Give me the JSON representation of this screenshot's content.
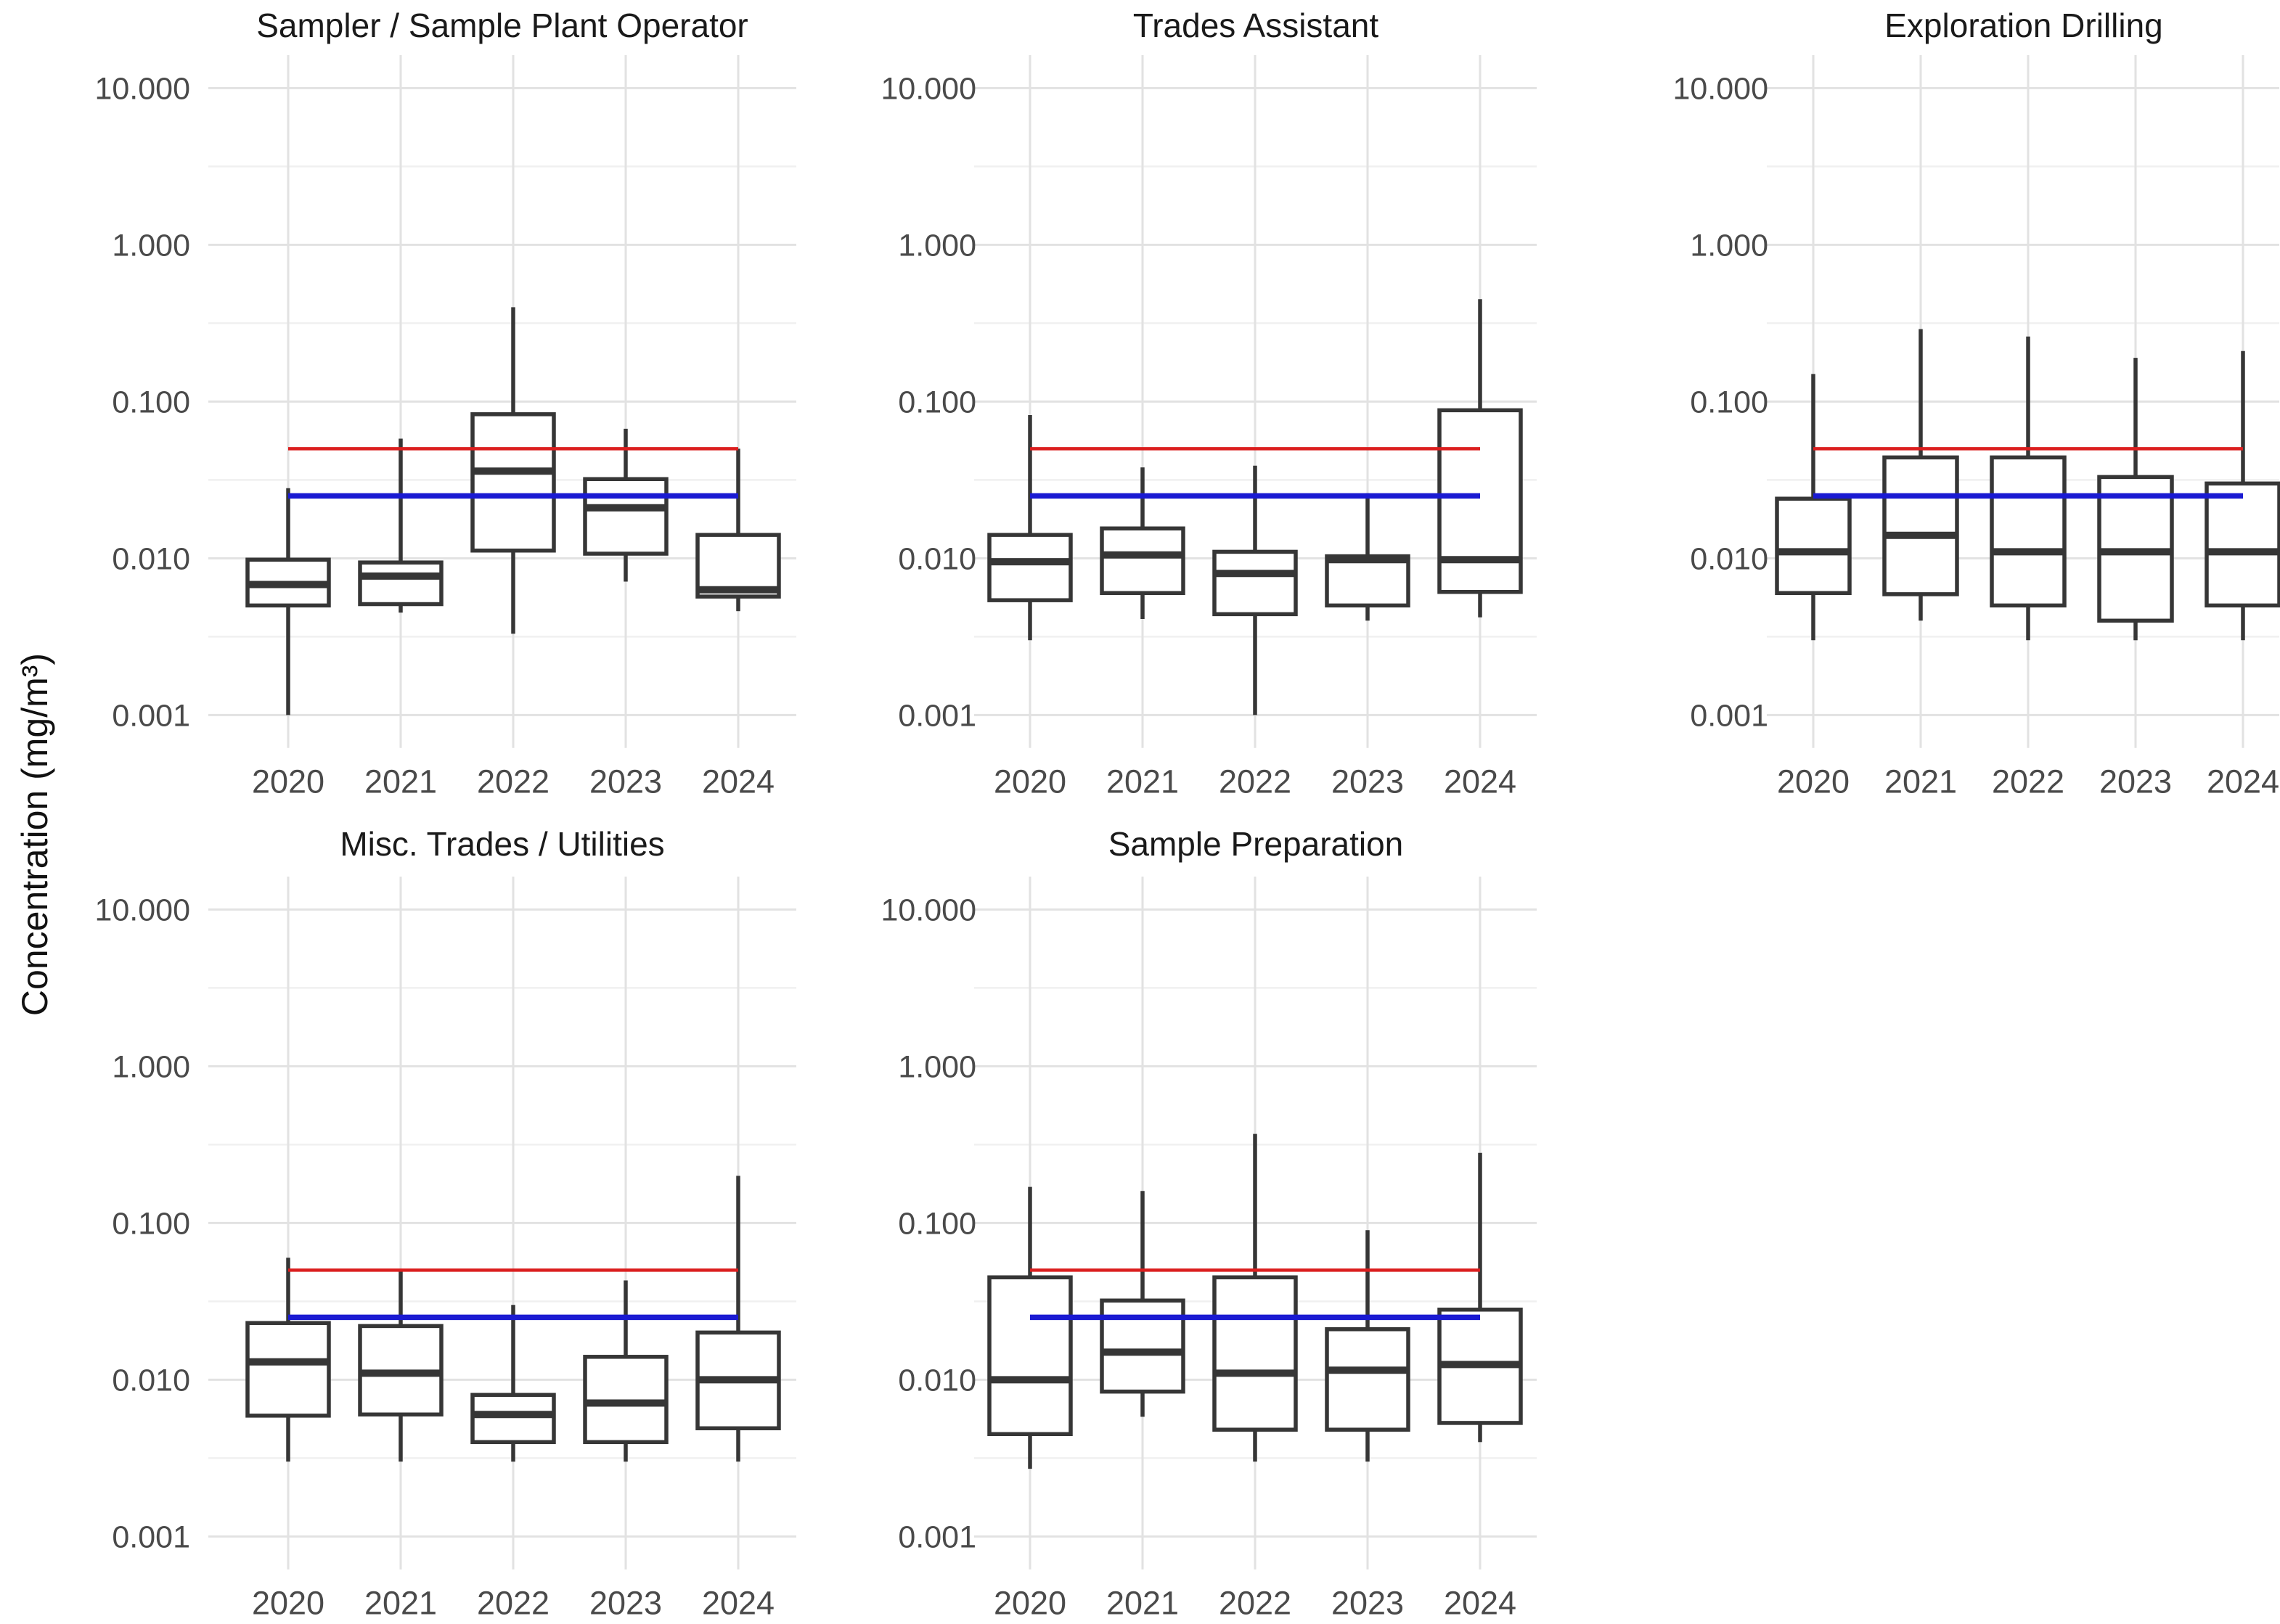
{
  "chart_data": {
    "type": "boxplot",
    "y_axis": {
      "label": "Concentration (mg/m³)",
      "scale": "log10",
      "tick_labels": [
        "10.000",
        "1.000",
        "0.100",
        "0.010",
        "0.001"
      ],
      "tick_values": [
        10,
        1,
        0.1,
        0.01,
        0.001
      ],
      "log_range_top": 1.21,
      "log_range_bottom": -3.21,
      "grid": "on"
    },
    "x_categories": [
      "2020",
      "2021",
      "2022",
      "2023",
      "2024"
    ],
    "reference_lines": [
      {
        "name": "red-limit-line",
        "value": 0.05,
        "color": "#DB1E1E"
      },
      {
        "name": "blue-limit-line",
        "value": 0.025,
        "color": "#1A1AD2"
      }
    ],
    "style": {
      "box_color": "#363636",
      "box_fill": "#ffffff",
      "grid_major_color": "#E2E2E2",
      "grid_minor_color": "#F0F0F0",
      "tick_text_color": "#4a4a4a"
    },
    "facets": [
      {
        "title": "Sampler / Sample Plant Operator",
        "boxes": [
          {
            "year": "2020",
            "min": 0.001,
            "q1": 0.005,
            "median": 0.0068,
            "q3": 0.0098,
            "max": 0.028
          },
          {
            "year": "2021",
            "min": 0.0045,
            "q1": 0.0051,
            "median": 0.0077,
            "q3": 0.0094,
            "max": 0.058
          },
          {
            "year": "2022",
            "min": 0.0033,
            "q1": 0.0112,
            "median": 0.036,
            "q3": 0.083,
            "max": 0.4
          },
          {
            "year": "2023",
            "min": 0.0071,
            "q1": 0.0107,
            "median": 0.021,
            "q3": 0.032,
            "max": 0.067
          },
          {
            "year": "2024",
            "min": 0.0046,
            "q1": 0.0057,
            "median": 0.0063,
            "q3": 0.0141,
            "max": 0.05
          }
        ]
      },
      {
        "title": "Trades Assistant",
        "boxes": [
          {
            "year": "2020",
            "min": 0.003,
            "q1": 0.0054,
            "median": 0.0095,
            "q3": 0.0141,
            "max": 0.082
          },
          {
            "year": "2021",
            "min": 0.0041,
            "q1": 0.006,
            "median": 0.0105,
            "q3": 0.0155,
            "max": 0.038
          },
          {
            "year": "2022",
            "min": 0.001,
            "q1": 0.0044,
            "median": 0.008,
            "q3": 0.011,
            "max": 0.039
          },
          {
            "year": "2023",
            "min": 0.004,
            "q1": 0.005,
            "median": 0.0098,
            "q3": 0.0103,
            "max": 0.026
          },
          {
            "year": "2024",
            "min": 0.0042,
            "q1": 0.0061,
            "median": 0.0098,
            "q3": 0.088,
            "max": 0.45
          }
        ]
      },
      {
        "title": "Exploration Drilling",
        "boxes": [
          {
            "year": "2020",
            "min": 0.003,
            "q1": 0.006,
            "median": 0.011,
            "q3": 0.024,
            "max": 0.15
          },
          {
            "year": "2021",
            "min": 0.004,
            "q1": 0.0059,
            "median": 0.014,
            "q3": 0.044,
            "max": 0.29
          },
          {
            "year": "2022",
            "min": 0.003,
            "q1": 0.005,
            "median": 0.011,
            "q3": 0.044,
            "max": 0.26
          },
          {
            "year": "2023",
            "min": 0.003,
            "q1": 0.004,
            "median": 0.011,
            "q3": 0.033,
            "max": 0.19
          },
          {
            "year": "2024",
            "min": 0.003,
            "q1": 0.005,
            "median": 0.011,
            "q3": 0.03,
            "max": 0.21
          }
        ]
      },
      {
        "title": "Misc. Trades / Utilities",
        "boxes": [
          {
            "year": "2020",
            "min": 0.003,
            "q1": 0.0059,
            "median": 0.013,
            "q3": 0.023,
            "max": 0.06
          },
          {
            "year": "2021",
            "min": 0.003,
            "q1": 0.006,
            "median": 0.011,
            "q3": 0.022,
            "max": 0.05
          },
          {
            "year": "2022",
            "min": 0.003,
            "q1": 0.004,
            "median": 0.006,
            "q3": 0.008,
            "max": 0.03
          },
          {
            "year": "2023",
            "min": 0.003,
            "q1": 0.004,
            "median": 0.0071,
            "q3": 0.014,
            "max": 0.043
          },
          {
            "year": "2024",
            "min": 0.003,
            "q1": 0.0049,
            "median": 0.01,
            "q3": 0.02,
            "max": 0.2
          }
        ]
      },
      {
        "title": "Sample Preparation",
        "boxes": [
          {
            "year": "2020",
            "min": 0.0027,
            "q1": 0.0045,
            "median": 0.01,
            "q3": 0.045,
            "max": 0.17
          },
          {
            "year": "2021",
            "min": 0.0058,
            "q1": 0.0084,
            "median": 0.015,
            "q3": 0.032,
            "max": 0.16
          },
          {
            "year": "2022",
            "min": 0.003,
            "q1": 0.0048,
            "median": 0.011,
            "q3": 0.045,
            "max": 0.37
          },
          {
            "year": "2023",
            "min": 0.003,
            "q1": 0.0048,
            "median": 0.0115,
            "q3": 0.021,
            "max": 0.09
          },
          {
            "year": "2024",
            "min": 0.004,
            "q1": 0.0053,
            "median": 0.0125,
            "q3": 0.028,
            "max": 0.28
          }
        ]
      }
    ]
  }
}
